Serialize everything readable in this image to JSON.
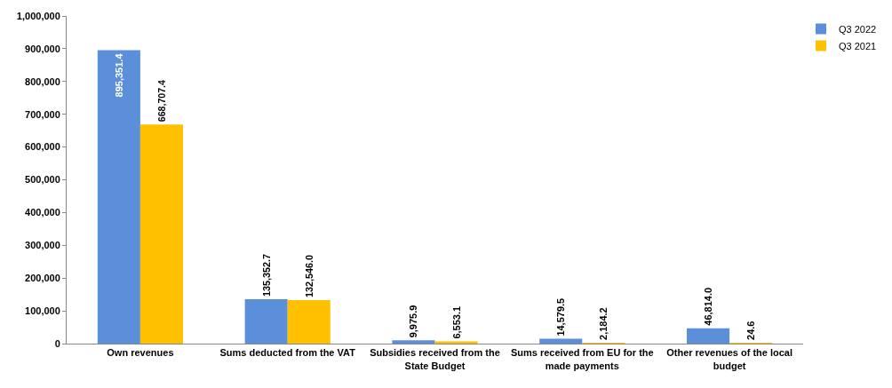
{
  "chart_data": {
    "type": "bar",
    "categories": [
      "Own revenues",
      "Sums deducted from the VAT",
      "Subsidies received from the State Budget",
      "Sums received from EU for the made payments",
      "Other revenues of the local budget"
    ],
    "series": [
      {
        "name": "Q3 2022",
        "color": "#5b8fd9",
        "values": [
          895351.4,
          135352.7,
          9975.9,
          14579.5,
          46814.0
        ],
        "value_labels": [
          "895,351.4",
          "135,352.7",
          "9,975.9",
          "14,579.5",
          "46,814.0"
        ]
      },
      {
        "name": "Q3 2021",
        "color": "#ffc000",
        "values": [
          668707.4,
          132546.0,
          6553.1,
          2184.2,
          24.6
        ],
        "value_labels": [
          "668,707.4",
          "132,546.0",
          "6,553.1",
          "2,184.2",
          "24.6"
        ]
      }
    ],
    "ylim": [
      0,
      1000000
    ],
    "yticks": [
      {
        "value": 0,
        "label": "0"
      },
      {
        "value": 100000,
        "label": "100,000"
      },
      {
        "value": 200000,
        "label": "200,000"
      },
      {
        "value": 300000,
        "label": "300,000"
      },
      {
        "value": 400000,
        "label": "400,000"
      },
      {
        "value": 500000,
        "label": "500,000"
      },
      {
        "value": 600000,
        "label": "600,000"
      },
      {
        "value": 700000,
        "label": "700,000"
      },
      {
        "value": 800000,
        "label": "800,000"
      },
      {
        "value": 900000,
        "label": "900,000"
      },
      {
        "value": 1000000,
        "label": "1,000,000"
      }
    ],
    "grid": false,
    "legend": "top right"
  }
}
